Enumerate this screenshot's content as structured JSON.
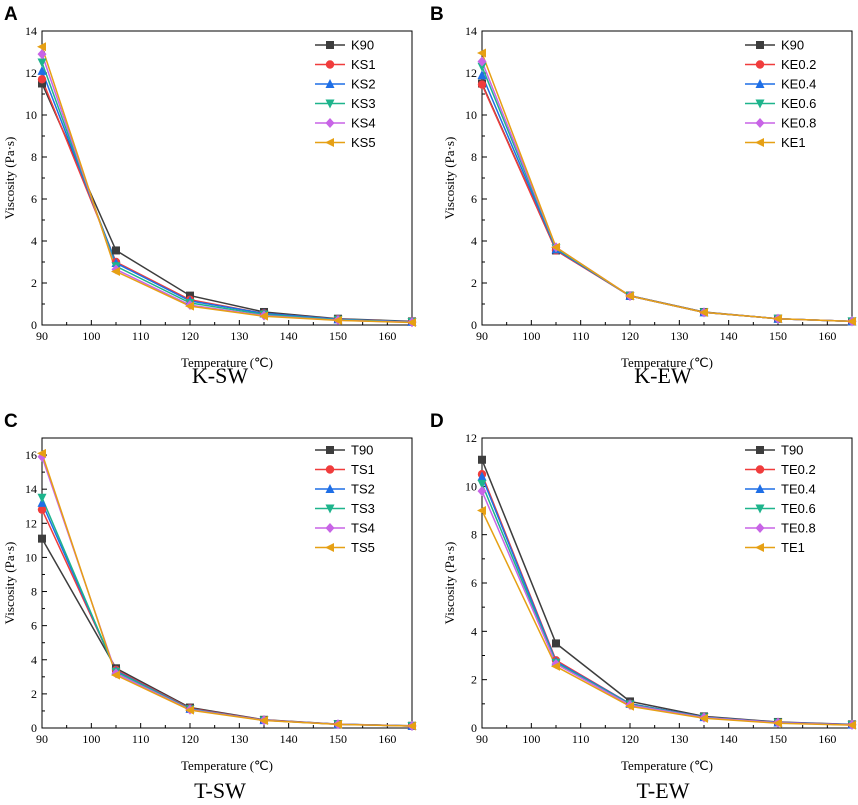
{
  "figure": {
    "colors": {
      "gray": "#3d3d3d",
      "red": "#f03c3c",
      "blue": "#1e6ee6",
      "green": "#1eb48c",
      "magenta": "#c864e6",
      "orange": "#e6a014"
    }
  },
  "chart_data": [
    {
      "type": "line",
      "letter": "A",
      "caption": "K-SW",
      "xlabel": "Temperature (℃)",
      "ylabel": "Viscosity (Pa·s)",
      "x": [
        90,
        105,
        120,
        135,
        150,
        165
      ],
      "xlim": [
        90,
        165
      ],
      "xticks": [
        "90",
        "100",
        "110",
        "120",
        "130",
        "140",
        "150",
        "160"
      ],
      "ylim": [
        0,
        14
      ],
      "yticks": [
        "0",
        "2",
        "4",
        "6",
        "8",
        "10",
        "12",
        "14"
      ],
      "legend_position": "top-right",
      "series": [
        {
          "name": "K90",
          "marker": "square",
          "color": "#3d3d3d",
          "values": [
            11.5,
            3.55,
            1.4,
            0.62,
            0.3,
            0.17
          ]
        },
        {
          "name": "KS1",
          "marker": "circle",
          "color": "#f03c3c",
          "values": [
            11.7,
            3.0,
            1.2,
            0.55,
            0.28,
            0.15
          ]
        },
        {
          "name": "KS2",
          "marker": "triangle-up",
          "color": "#1e6ee6",
          "values": [
            12.1,
            2.95,
            1.15,
            0.55,
            0.27,
            0.15
          ]
        },
        {
          "name": "KS3",
          "marker": "triangle-down",
          "color": "#1eb48c",
          "values": [
            12.5,
            2.8,
            1.05,
            0.5,
            0.25,
            0.14
          ]
        },
        {
          "name": "KS4",
          "marker": "diamond",
          "color": "#c864e6",
          "values": [
            12.9,
            2.65,
            0.95,
            0.45,
            0.23,
            0.13
          ]
        },
        {
          "name": "KS5",
          "marker": "triangle-left",
          "color": "#e6a014",
          "values": [
            13.25,
            2.55,
            0.9,
            0.42,
            0.22,
            0.12
          ]
        }
      ]
    },
    {
      "type": "line",
      "letter": "B",
      "caption": "K-EW",
      "xlabel": "Temperature (℃)",
      "ylabel": "Viscosity (Pa·s)",
      "x": [
        90,
        105,
        120,
        135,
        150,
        165
      ],
      "xlim": [
        90,
        165
      ],
      "xticks": [
        "90",
        "100",
        "110",
        "120",
        "130",
        "140",
        "150",
        "160"
      ],
      "ylim": [
        0,
        14
      ],
      "yticks": [
        "0",
        "2",
        "4",
        "6",
        "8",
        "10",
        "12",
        "14"
      ],
      "legend_position": "top-right",
      "series": [
        {
          "name": "K90",
          "marker": "square",
          "color": "#3d3d3d",
          "values": [
            11.5,
            3.55,
            1.4,
            0.62,
            0.3,
            0.17
          ]
        },
        {
          "name": "KE0.2",
          "marker": "circle",
          "color": "#f03c3c",
          "values": [
            11.45,
            3.55,
            1.38,
            0.6,
            0.3,
            0.17
          ]
        },
        {
          "name": "KE0.4",
          "marker": "triangle-up",
          "color": "#1e6ee6",
          "values": [
            11.9,
            3.6,
            1.38,
            0.6,
            0.3,
            0.17
          ]
        },
        {
          "name": "KE0.6",
          "marker": "triangle-down",
          "color": "#1eb48c",
          "values": [
            12.3,
            3.65,
            1.38,
            0.6,
            0.3,
            0.17
          ]
        },
        {
          "name": "KE0.8",
          "marker": "diamond",
          "color": "#c864e6",
          "values": [
            12.55,
            3.7,
            1.38,
            0.6,
            0.3,
            0.17
          ]
        },
        {
          "name": "KE1",
          "marker": "triangle-left",
          "color": "#e6a014",
          "values": [
            12.95,
            3.7,
            1.38,
            0.6,
            0.3,
            0.17
          ]
        }
      ]
    },
    {
      "type": "line",
      "letter": "C",
      "caption": "T-SW",
      "xlabel": "Temperature (℃)",
      "ylabel": "Viscosity (Pa·s)",
      "x": [
        90,
        105,
        120,
        135,
        150,
        165
      ],
      "xlim": [
        90,
        165
      ],
      "xticks": [
        "90",
        "100",
        "110",
        "120",
        "130",
        "140",
        "150",
        "160"
      ],
      "ylim": [
        0,
        17
      ],
      "yticks": [
        "0",
        "2",
        "4",
        "6",
        "8",
        "10",
        "12",
        "14",
        "16"
      ],
      "legend_position": "top-right",
      "series": [
        {
          "name": "T90",
          "marker": "square",
          "color": "#3d3d3d",
          "values": [
            11.1,
            3.5,
            1.2,
            0.48,
            0.23,
            0.13
          ]
        },
        {
          "name": "TS1",
          "marker": "circle",
          "color": "#f03c3c",
          "values": [
            12.8,
            3.4,
            1.15,
            0.47,
            0.22,
            0.12
          ]
        },
        {
          "name": "TS2",
          "marker": "triangle-up",
          "color": "#1e6ee6",
          "values": [
            13.2,
            3.35,
            1.12,
            0.46,
            0.22,
            0.12
          ]
        },
        {
          "name": "TS3",
          "marker": "triangle-down",
          "color": "#1eb48c",
          "values": [
            13.5,
            3.3,
            1.1,
            0.45,
            0.22,
            0.12
          ]
        },
        {
          "name": "TS4",
          "marker": "diamond",
          "color": "#c864e6",
          "values": [
            15.9,
            3.2,
            1.08,
            0.45,
            0.22,
            0.12
          ]
        },
        {
          "name": "TS5",
          "marker": "triangle-left",
          "color": "#e6a014",
          "values": [
            16.1,
            3.1,
            1.05,
            0.44,
            0.21,
            0.12
          ]
        }
      ]
    },
    {
      "type": "line",
      "letter": "D",
      "caption": "T-EW",
      "xlabel": "Temperature (℃)",
      "ylabel": "Viscosity (Pa·s)",
      "x": [
        90,
        105,
        120,
        135,
        150,
        165
      ],
      "xlim": [
        90,
        165
      ],
      "xticks": [
        "90",
        "100",
        "110",
        "120",
        "130",
        "140",
        "150",
        "160"
      ],
      "ylim": [
        0,
        12
      ],
      "yticks": [
        "0",
        "2",
        "4",
        "6",
        "8",
        "10",
        "12"
      ],
      "legend_position": "top-right",
      "series": [
        {
          "name": "T90",
          "marker": "square",
          "color": "#3d3d3d",
          "values": [
            11.1,
            3.5,
            1.1,
            0.48,
            0.25,
            0.15
          ]
        },
        {
          "name": "TE0.2",
          "marker": "circle",
          "color": "#f03c3c",
          "values": [
            10.5,
            2.8,
            1.0,
            0.45,
            0.23,
            0.14
          ]
        },
        {
          "name": "TE0.4",
          "marker": "triangle-up",
          "color": "#1e6ee6",
          "values": [
            10.4,
            2.75,
            1.0,
            0.45,
            0.23,
            0.14
          ]
        },
        {
          "name": "TE0.6",
          "marker": "triangle-down",
          "color": "#1eb48c",
          "values": [
            10.1,
            2.7,
            0.98,
            0.44,
            0.22,
            0.13
          ]
        },
        {
          "name": "TE0.8",
          "marker": "diamond",
          "color": "#c864e6",
          "values": [
            9.8,
            2.65,
            0.95,
            0.43,
            0.22,
            0.13
          ]
        },
        {
          "name": "TE1",
          "marker": "triangle-left",
          "color": "#e6a014",
          "values": [
            9.0,
            2.55,
            0.9,
            0.4,
            0.2,
            0.12
          ]
        }
      ]
    }
  ]
}
